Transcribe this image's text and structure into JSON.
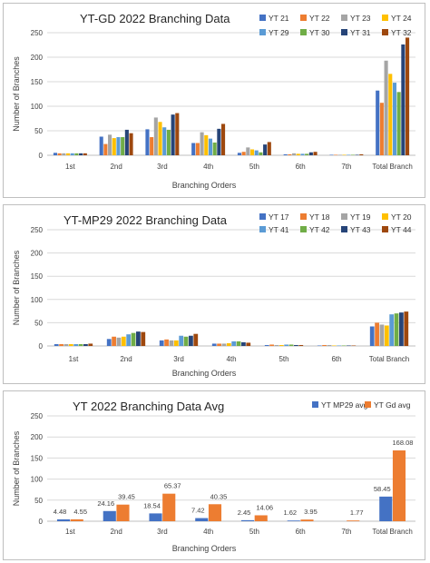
{
  "chart_data": [
    {
      "type": "bar",
      "title": "YT-GD 2022 Branching Data",
      "xlabel": "Branching Orders",
      "ylabel": "Number of Branches",
      "ylim": [
        0,
        250
      ],
      "yticks": [
        0,
        50,
        100,
        150,
        200,
        250
      ],
      "grid": true,
      "legend_position": "top-right",
      "categories": [
        "1st",
        "2nd",
        "3rd",
        "4th",
        "5th",
        "6th",
        "7th",
        "Total Branch"
      ],
      "series": [
        {
          "name": "YT 21",
          "color": "#4472C4",
          "values": [
            5,
            38,
            53,
            25,
            5,
            2,
            1,
            132
          ]
        },
        {
          "name": "YT 22",
          "color": "#ED7D31",
          "values": [
            4,
            23,
            37,
            25,
            7,
            2,
            1,
            107
          ]
        },
        {
          "name": "YT 23",
          "color": "#A5A5A5",
          "values": [
            4,
            42,
            77,
            47,
            16,
            4,
            1,
            193
          ]
        },
        {
          "name": "YT 24",
          "color": "#FFC000",
          "values": [
            4,
            35,
            68,
            41,
            12,
            3,
            1,
            166
          ]
        },
        {
          "name": "YT 29",
          "color": "#5B9BD5",
          "values": [
            4,
            37,
            57,
            34,
            10,
            3,
            1,
            148
          ]
        },
        {
          "name": "YT 30",
          "color": "#70AD47",
          "values": [
            4,
            37,
            52,
            26,
            6,
            3,
            1,
            129
          ]
        },
        {
          "name": "YT 31",
          "color": "#264478",
          "values": [
            4,
            52,
            83,
            54,
            22,
            6,
            1,
            226
          ]
        },
        {
          "name": "YT 32",
          "color": "#9E480E",
          "values": [
            4,
            45,
            86,
            64,
            27,
            7,
            2,
            240
          ]
        }
      ]
    },
    {
      "type": "bar",
      "title": "YT-MP29 2022 Branching Data",
      "xlabel": "Branching Orders",
      "ylabel": "Number of Branches",
      "ylim": [
        0,
        250
      ],
      "yticks": [
        0,
        50,
        100,
        150,
        200,
        250
      ],
      "grid": true,
      "legend_position": "top-right",
      "categories": [
        "1st",
        "2nd",
        "3rd",
        "4th",
        "5th",
        "6th",
        "Total Branch"
      ],
      "series": [
        {
          "name": "YT 17",
          "color": "#4472C4",
          "values": [
            4,
            15,
            12,
            5,
            2,
            1,
            42
          ]
        },
        {
          "name": "YT 18",
          "color": "#ED7D31",
          "values": [
            4,
            20,
            14,
            5,
            3,
            2,
            50
          ]
        },
        {
          "name": "YT 19",
          "color": "#A5A5A5",
          "values": [
            4,
            18,
            12,
            5,
            2,
            2,
            46
          ]
        },
        {
          "name": "YT 20",
          "color": "#FFC000",
          "values": [
            4,
            20,
            12,
            6,
            2,
            1,
            44
          ]
        },
        {
          "name": "YT 41",
          "color": "#5B9BD5",
          "values": [
            4,
            25,
            22,
            10,
            3,
            1,
            68
          ]
        },
        {
          "name": "YT 42",
          "color": "#70AD47",
          "values": [
            4,
            28,
            20,
            10,
            3,
            1,
            70
          ]
        },
        {
          "name": "YT 43",
          "color": "#264478",
          "values": [
            4,
            31,
            22,
            8,
            2,
            1,
            72
          ]
        },
        {
          "name": "YT 44",
          "color": "#9E480E",
          "values": [
            5,
            30,
            26,
            7,
            2,
            1,
            74
          ]
        }
      ]
    },
    {
      "type": "bar",
      "title": "YT 2022 Branching Data Avg",
      "xlabel": "Branching Orders",
      "ylabel": "Number of Branches",
      "ylim": [
        0,
        250
      ],
      "yticks": [
        0,
        50,
        100,
        150,
        200,
        250
      ],
      "grid": true,
      "legend_position": "top-right",
      "data_labels": true,
      "categories": [
        "1st",
        "2nd",
        "3rd",
        "4th",
        "5th",
        "6th",
        "7th",
        "Total Branch"
      ],
      "series": [
        {
          "name": "YT MP29 avg",
          "color": "#4472C4",
          "values": [
            4.48,
            24.16,
            18.54,
            7.42,
            2.45,
            1.62,
            0,
            58.45
          ],
          "labels": [
            "4.48",
            "24.16",
            "18.54",
            "7.42",
            "2.45",
            "1.62",
            "",
            "58.45"
          ]
        },
        {
          "name": "YT Gd avg",
          "color": "#ED7D31",
          "values": [
            4.55,
            39.45,
            65.37,
            40.35,
            14.06,
            3.95,
            1.77,
            168.08
          ],
          "labels": [
            "4.55",
            "39.45",
            "65.37",
            "40.35",
            "14.06",
            "3.95",
            "1.77",
            "168.08"
          ]
        }
      ]
    }
  ]
}
